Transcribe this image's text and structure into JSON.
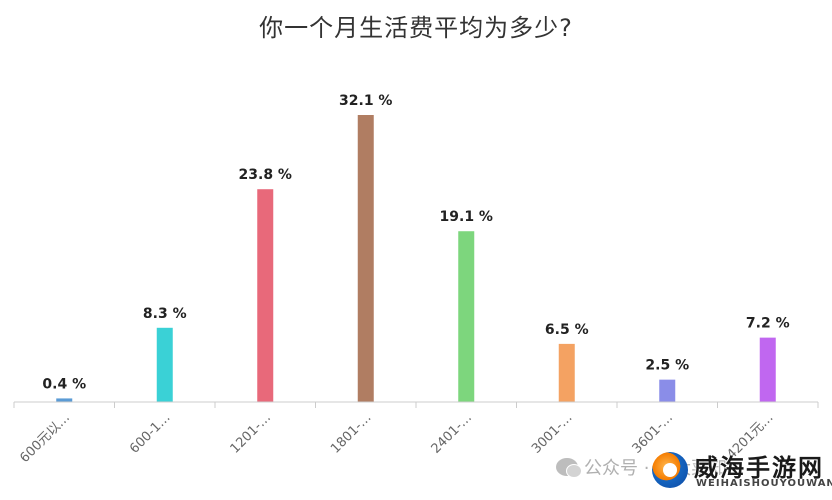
{
  "chart_data": {
    "type": "bar",
    "title": "你一个月生活费平均为多少?",
    "categories": [
      "600元以…",
      "600-1…",
      "1201-…",
      "1801-…",
      "2401-…",
      "3001-…",
      "3601-…",
      "4201元…"
    ],
    "values": [
      0.4,
      8.3,
      23.8,
      32.1,
      19.1,
      6.5,
      2.5,
      7.2
    ],
    "data_labels": [
      "0.4 %",
      "8.3 %",
      "23.8 %",
      "32.1 %",
      "19.1 %",
      "6.5 %",
      "2.5 %",
      "7.2 %"
    ],
    "colors": [
      "#5b9bd5",
      "#3ad1d6",
      "#e8697a",
      "#b07d62",
      "#7dd67d",
      "#f4a262",
      "#8a8de8",
      "#c067f0"
    ],
    "ylim": [
      0,
      35
    ],
    "grid": false,
    "legend": "none"
  },
  "watermark": {
    "account": "公众号 · 凌大菜知",
    "site_name": "威海手游网",
    "site_url": "WEIHAISHOUYOUWANG"
  }
}
